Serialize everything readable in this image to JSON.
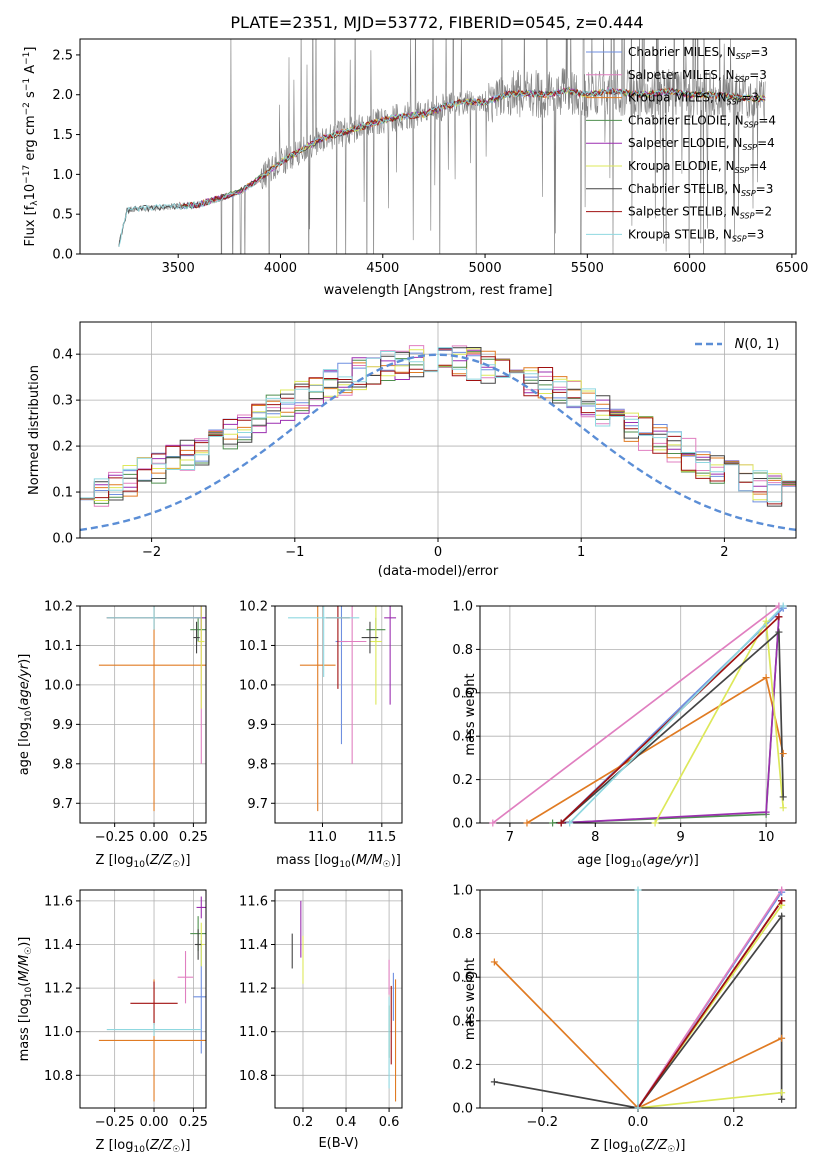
{
  "figure": {
    "title": "PLATE=2351, MJD=53772, FIBERID=0545, z=0.444"
  },
  "colors": {
    "Chabrier MILES": "#6f8fe0",
    "Salpeter MILES": "#e07fc0",
    "Kroupa MILES": "#e07b23",
    "Chabrier ELODIE": "#4f8f4f",
    "Salpeter ELODIE": "#9b2fb0",
    "Kroupa ELODIE": "#dde85a",
    "Chabrier STELIB": "#444444",
    "Salpeter STELIB": "#a01010",
    "Kroupa STELIB": "#8fd8e0",
    "data": "#808080",
    "gaussian": "#5b8ed6",
    "grid": "#b0b0b0"
  },
  "legend_labels": [
    "Chabrier MILES, N_SSP=3",
    "Salpeter MILES, N_SSP=3",
    "Kroupa MILES, N_SSP=3",
    "Chabrier ELODIE, N_SSP=4",
    "Salpeter ELODIE, N_SSP=4",
    "Kroupa ELODIE, N_SSP=4",
    "Chabrier STELIB, N_SSP=3",
    "Salpeter STELIB, N_SSP=2",
    "Kroupa STELIB, N_SSP=3"
  ],
  "chart_data": [
    {
      "id": "spectrum",
      "type": "line",
      "title": "PLATE=2351, MJD=53772, FIBERID=0545, z=0.444",
      "xlabel": "wavelength [Angstrom, rest frame]",
      "ylabel": "Flux [f_λ 10^-17 erg cm^-2 s^-1 A^-1]",
      "xlim": [
        3020,
        6520
      ],
      "ylim": [
        0,
        2.7
      ],
      "xticks": [
        3500,
        4000,
        4500,
        5000,
        5500,
        6000,
        6500
      ],
      "yticks": [
        0.0,
        0.5,
        1.0,
        1.5,
        2.0,
        2.5
      ],
      "data_trend": {
        "x": [
          3200,
          3250,
          3300,
          3400,
          3500,
          3600,
          3700,
          3800,
          3900,
          4000,
          4100,
          4200,
          4300,
          4400,
          4500,
          4600,
          4700,
          4800,
          4900,
          5000,
          5100,
          5200,
          5300,
          5400,
          5500,
          5600,
          5700,
          5800,
          5900,
          6000,
          6100,
          6200,
          6300,
          6370
        ],
        "y": [
          0.0,
          0.55,
          0.57,
          0.58,
          0.6,
          0.62,
          0.7,
          0.78,
          0.95,
          1.15,
          1.3,
          1.45,
          1.52,
          1.6,
          1.68,
          1.73,
          1.75,
          1.85,
          1.92,
          1.9,
          2.0,
          2.02,
          2.0,
          2.05,
          2.0,
          2.05,
          2.02,
          2.0,
          2.05,
          2.0,
          2.0,
          1.98,
          1.95,
          1.95
        ]
      }
    },
    {
      "id": "residuals",
      "type": "step",
      "xlabel": "(data-model)/error",
      "ylabel": "Normed distribution",
      "xlim": [
        -2.5,
        2.5
      ],
      "ylim": [
        0,
        0.47
      ],
      "xticks": [
        -2,
        -1,
        0,
        1,
        2
      ],
      "yticks": [
        0.0,
        0.1,
        0.2,
        0.3,
        0.4
      ],
      "legend": "N(0,1)",
      "bin_edges_start": -2.5,
      "bin_width": 0.1
    },
    {
      "id": "age-vs-Z",
      "type": "errorbar",
      "xlabel": "Z [log10(Z/Z☉)]",
      "ylabel": "age  [log10(age/yr)]",
      "xlim": [
        -0.47,
        0.33
      ],
      "ylim": [
        9.65,
        10.2
      ],
      "xticks": [
        -0.25,
        0.0,
        0.25
      ],
      "yticks": [
        9.7,
        9.8,
        9.9,
        10.0,
        10.1,
        10.2
      ],
      "points": [
        {
          "s": "Chabrier MILES",
          "x": 0.3,
          "xe": 0.28,
          "y": 10.17,
          "ye": 0.03
        },
        {
          "s": "Salpeter MILES",
          "x": 0.3,
          "xe": 0.02,
          "y": 10.11,
          "ye": 0.31
        },
        {
          "s": "Kroupa MILES",
          "x": 0.0,
          "xe": 0.35,
          "y": 10.05,
          "ye": 0.37
        },
        {
          "s": "Chabrier ELODIE",
          "x": 0.28,
          "xe": 0.05,
          "y": 10.14,
          "ye": 0.03
        },
        {
          "s": "Salpeter ELODIE",
          "x": 0.3,
          "xe": 0.04,
          "y": 10.17,
          "ye": 0.03
        },
        {
          "s": "Kroupa ELODIE",
          "x": 0.3,
          "xe": 0.02,
          "y": 10.11,
          "ye": 0.17
        },
        {
          "s": "Chabrier STELIB",
          "x": 0.27,
          "xe": 0.02,
          "y": 10.12,
          "ye": 0.04
        },
        {
          "s": "Salpeter STELIB",
          "x": 0.0,
          "xe": 0.3,
          "y": 10.17,
          "ye": 0.03
        },
        {
          "s": "Kroupa STELIB",
          "x": 0.0,
          "xe": 0.3,
          "y": 10.17,
          "ye": 0.03
        }
      ]
    },
    {
      "id": "age-vs-mass",
      "type": "errorbar",
      "xlabel": "mass [log10(M/M☉)]",
      "ylabel": "",
      "xlim": [
        10.6,
        11.67
      ],
      "ylim": [
        9.65,
        10.2
      ],
      "xticks": [
        11.0,
        11.5
      ],
      "yticks": [
        9.7,
        9.8,
        9.9,
        10.0,
        10.1,
        10.2
      ],
      "points": [
        {
          "s": "Chabrier MILES",
          "x": 11.16,
          "xe": 0.05,
          "y": 10.11,
          "ye": 0.26
        },
        {
          "s": "Salpeter MILES",
          "x": 11.25,
          "xe": 0.12,
          "y": 10.11,
          "ye": 0.31
        },
        {
          "s": "Kroupa MILES",
          "x": 10.96,
          "xe": 0.15,
          "y": 10.05,
          "ye": 0.37
        },
        {
          "s": "Chabrier ELODIE",
          "x": 11.45,
          "xe": 0.08,
          "y": 10.14,
          "ye": 0.03
        },
        {
          "s": "Salpeter ELODIE",
          "x": 11.57,
          "xe": 0.05,
          "y": 10.17,
          "ye": 0.22
        },
        {
          "s": "Kroupa ELODIE",
          "x": 11.45,
          "xe": 0.05,
          "y": 10.11,
          "ye": 0.16
        },
        {
          "s": "Chabrier STELIB",
          "x": 11.4,
          "xe": 0.07,
          "y": 10.12,
          "ye": 0.04
        },
        {
          "s": "Salpeter STELIB",
          "x": 11.13,
          "xe": 0.1,
          "y": 10.17,
          "ye": 0.18
        },
        {
          "s": "Kroupa STELIB",
          "x": 11.01,
          "xe": 0.3,
          "y": 10.17,
          "ye": 0.15
        }
      ]
    },
    {
      "id": "weight-vs-age",
      "type": "line",
      "xlabel": "age  [log10(age/yr)]",
      "ylabel": "mass weight",
      "xlim": [
        6.65,
        10.35
      ],
      "ylim": [
        0,
        1
      ],
      "xticks": [
        7,
        8,
        9,
        10
      ],
      "yticks": [
        0.0,
        0.2,
        0.4,
        0.6,
        0.8,
        1.0
      ],
      "series": [
        {
          "s": "Chabrier MILES",
          "x": [
            10.2,
            7.6,
            10.2
          ],
          "y": [
            0.99,
            0.0,
            0.99
          ]
        },
        {
          "s": "Salpeter MILES",
          "x": [
            10.15,
            6.8,
            10.15
          ],
          "y": [
            1.0,
            0.0,
            1.0
          ]
        },
        {
          "s": "Kroupa MILES",
          "x": [
            7.2,
            10.0,
            10.2
          ],
          "y": [
            0.0,
            0.67,
            0.32
          ]
        },
        {
          "s": "Chabrier ELODIE",
          "x": [
            7.5,
            10.0,
            10.15
          ],
          "y": [
            0.0,
            0.04,
            0.95
          ]
        },
        {
          "s": "Salpeter ELODIE",
          "x": [
            7.6,
            10.0,
            10.15
          ],
          "y": [
            0.0,
            0.05,
            0.95
          ]
        },
        {
          "s": "Kroupa ELODIE",
          "x": [
            8.7,
            10.0,
            10.2
          ],
          "y": [
            0.0,
            0.93,
            0.07
          ]
        },
        {
          "s": "Chabrier STELIB",
          "x": [
            7.6,
            10.15,
            10.2
          ],
          "y": [
            0.0,
            0.88,
            0.12
          ]
        },
        {
          "s": "Salpeter STELIB",
          "x": [
            7.6,
            10.15
          ],
          "y": [
            0.0,
            0.95
          ]
        },
        {
          "s": "Kroupa STELIB",
          "x": [
            7.7,
            10.2
          ],
          "y": [
            0.0,
            1.0
          ]
        }
      ]
    },
    {
      "id": "mass-vs-Z",
      "type": "errorbar",
      "xlabel": "Z [log10(Z/Z☉)]",
      "ylabel": "mass [log10(M/M☉)]",
      "xlim": [
        -0.47,
        0.33
      ],
      "ylim": [
        10.65,
        11.65
      ],
      "xticks": [
        -0.25,
        0.0,
        0.25
      ],
      "yticks": [
        10.8,
        11.0,
        11.2,
        11.4,
        11.6
      ],
      "points": [
        {
          "s": "Chabrier MILES",
          "x": 0.3,
          "xe": 0.05,
          "y": 11.16,
          "ye": 0.26
        },
        {
          "s": "Salpeter MILES",
          "x": 0.2,
          "xe": 0.05,
          "y": 11.25,
          "ye": 0.12
        },
        {
          "s": "Kroupa MILES",
          "x": 0.0,
          "xe": 0.35,
          "y": 10.96,
          "ye": 0.28
        },
        {
          "s": "Chabrier ELODIE",
          "x": 0.28,
          "xe": 0.05,
          "y": 11.45,
          "ye": 0.08
        },
        {
          "s": "Salpeter ELODIE",
          "x": 0.3,
          "xe": 0.03,
          "y": 11.57,
          "ye": 0.05
        },
        {
          "s": "Kroupa ELODIE",
          "x": 0.3,
          "xe": 0.02,
          "y": 11.4,
          "ye": 0.1
        },
        {
          "s": "Chabrier STELIB",
          "x": 0.28,
          "xe": 0.02,
          "y": 11.4,
          "ye": 0.07
        },
        {
          "s": "Salpeter STELIB",
          "x": 0.0,
          "xe": 0.15,
          "y": 11.13,
          "ye": 0.1
        },
        {
          "s": "Kroupa STELIB",
          "x": 0.0,
          "xe": 0.3,
          "y": 11.01,
          "ye": 0.03
        }
      ]
    },
    {
      "id": "mass-vs-EBV",
      "type": "errorbar",
      "xlabel": "E(B-V)",
      "ylabel": "",
      "xlim": [
        0.07,
        0.66
      ],
      "ylim": [
        10.65,
        11.65
      ],
      "xticks": [
        0.2,
        0.4,
        0.6
      ],
      "yticks": [
        10.8,
        11.0,
        11.2,
        11.4,
        11.6
      ],
      "points": [
        {
          "s": "Chabrier MILES",
          "x": 0.62,
          "xe": 0.0,
          "y": 11.16,
          "ye": 0.11
        },
        {
          "s": "Salpeter MILES",
          "x": 0.6,
          "xe": 0.0,
          "y": 11.25,
          "ye": 0.08
        },
        {
          "s": "Kroupa MILES",
          "x": 0.63,
          "xe": 0.0,
          "y": 10.96,
          "ye": 0.28
        },
        {
          "s": "Chabrier ELODIE",
          "x": 0.6,
          "xe": 0.0,
          "y": 11.0,
          "ye": 0.12
        },
        {
          "s": "Salpeter ELODIE",
          "x": 0.19,
          "xe": 0.0,
          "y": 11.47,
          "ye": 0.13
        },
        {
          "s": "Kroupa ELODIE",
          "x": 0.2,
          "xe": 0.0,
          "y": 11.33,
          "ye": 0.11
        },
        {
          "s": "Chabrier STELIB",
          "x": 0.15,
          "xe": 0.0,
          "y": 11.37,
          "ye": 0.08
        },
        {
          "s": "Salpeter STELIB",
          "x": 0.61,
          "xe": 0.0,
          "y": 11.03,
          "ye": 0.18
        },
        {
          "s": "Kroupa STELIB",
          "x": 0.6,
          "xe": 0.0,
          "y": 10.95,
          "ye": 0.21
        }
      ]
    },
    {
      "id": "weight-vs-Z",
      "type": "line",
      "xlabel": "Z [log10(Z/Z☉)]",
      "ylabel": "mass weight",
      "xlim": [
        -0.33,
        0.33
      ],
      "ylim": [
        0,
        1
      ],
      "xticks": [
        -0.2,
        0.0,
        0.2
      ],
      "yticks": [
        0.0,
        0.2,
        0.4,
        0.6,
        0.8,
        1.0
      ],
      "series": [
        {
          "s": "Chabrier MILES",
          "x": [
            0.3,
            0.0,
            0.3
          ],
          "y": [
            0.99,
            0.0,
            0.99
          ]
        },
        {
          "s": "Salpeter MILES",
          "x": [
            0.3,
            0.0,
            0.3
          ],
          "y": [
            1.0,
            0.0,
            1.0
          ]
        },
        {
          "s": "Kroupa MILES",
          "x": [
            -0.3,
            0.0,
            0.3
          ],
          "y": [
            0.67,
            0.0,
            0.32
          ]
        },
        {
          "s": "Chabrier ELODIE",
          "x": [
            0.3,
            0.0,
            0.3
          ],
          "y": [
            0.95,
            0.0,
            0.95
          ]
        },
        {
          "s": "Salpeter ELODIE",
          "x": [
            0.3,
            0.0,
            0.3
          ],
          "y": [
            0.95,
            0.0,
            0.95
          ]
        },
        {
          "s": "Kroupa ELODIE",
          "x": [
            0.3,
            0.0,
            0.3
          ],
          "y": [
            0.93,
            0.0,
            0.07
          ]
        },
        {
          "s": "Chabrier STELIB",
          "x": [
            -0.3,
            0.0,
            0.3,
            0.3
          ],
          "y": [
            0.12,
            0.0,
            0.88,
            0.04
          ]
        },
        {
          "s": "Salpeter STELIB",
          "x": [
            0.0,
            0.3
          ],
          "y": [
            0.0,
            0.95
          ]
        },
        {
          "s": "Kroupa STELIB",
          "x": [
            0.0,
            0.0
          ],
          "y": [
            0.0,
            1.0
          ]
        }
      ]
    }
  ]
}
